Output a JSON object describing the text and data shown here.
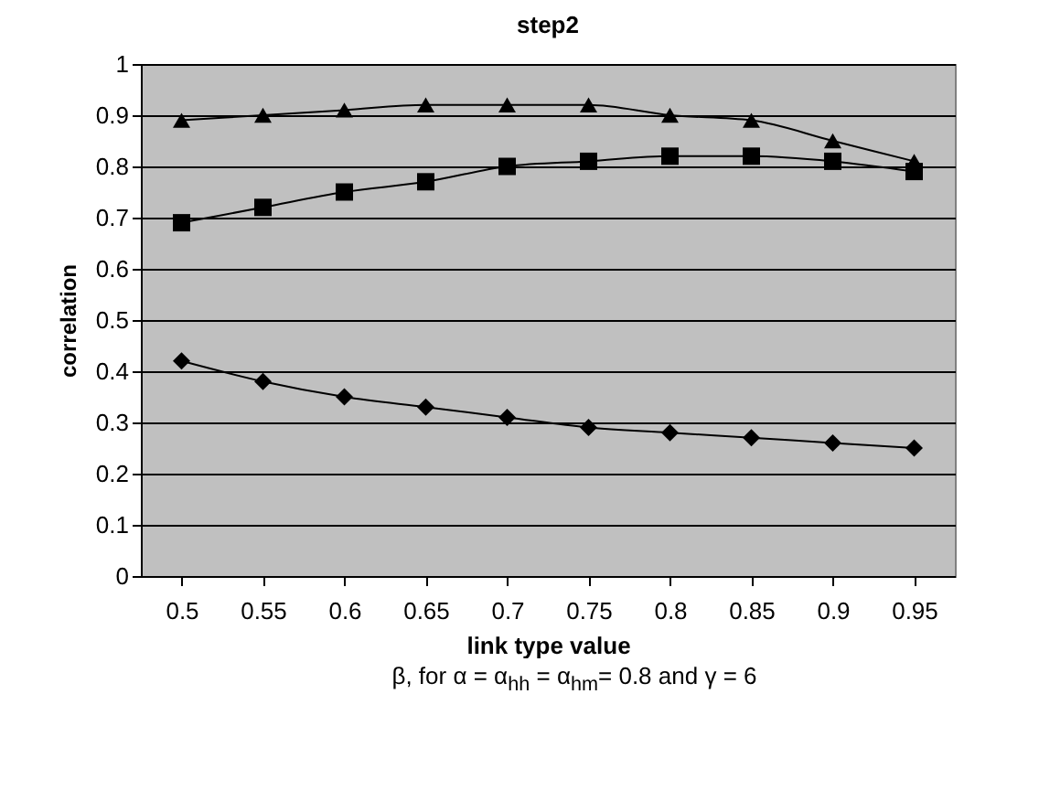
{
  "chart_data": {
    "type": "line",
    "title": "step2",
    "xlabel": "link type value",
    "ylabel": "correlation",
    "annotations": [
      "β, for α = α$_{hh}$ = α$_{hm}$= 0.8 and  γ = 6"
    ],
    "categories": [
      "0.5",
      "0.55",
      "0.6",
      "0.65",
      "0.7",
      "0.75",
      "0.8",
      "0.85",
      "0.9",
      "0.95"
    ],
    "series": [
      {
        "color": "#000000",
        "marker": "triangle",
        "values": [
          0.89,
          0.9,
          0.91,
          0.92,
          0.92,
          0.92,
          0.9,
          0.89,
          0.85,
          0.81
        ]
      },
      {
        "color": "#000000",
        "marker": "square",
        "values": [
          0.69,
          0.72,
          0.75,
          0.77,
          0.8,
          0.81,
          0.82,
          0.82,
          0.81,
          0.79
        ]
      },
      {
        "color": "#000000",
        "marker": "diamond",
        "values": [
          0.42,
          0.38,
          0.35,
          0.33,
          0.31,
          0.29,
          0.28,
          0.27,
          0.26,
          0.25
        ]
      }
    ],
    "ylim": [
      0,
      1
    ],
    "yticks": [
      0,
      0.1,
      0.2,
      0.3,
      0.4,
      0.5,
      0.6,
      0.7,
      0.8,
      0.9,
      1
    ],
    "grid": "y",
    "legend": false
  }
}
